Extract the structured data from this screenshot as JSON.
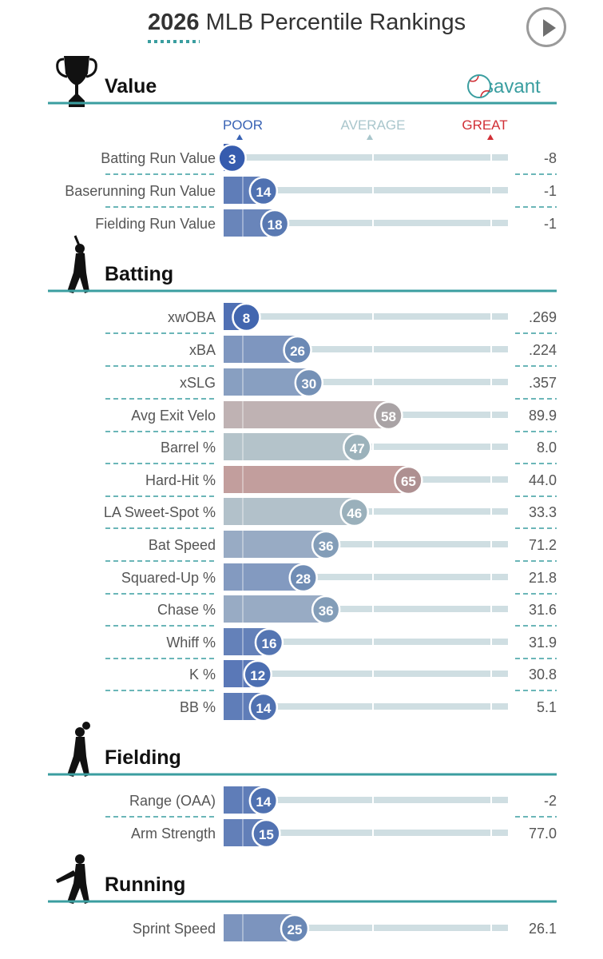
{
  "title_year": "2026",
  "title_rest": " MLB Percentile Rankings",
  "brand": "savant",
  "scale_labels": {
    "poor": "POOR",
    "average": "AVERAGE",
    "great": "GREAT"
  },
  "colors": {
    "teal": "#3a9ea0",
    "poor": "#3862b4",
    "great": "#d12f36",
    "average": "#a9c6cc",
    "track": "#cfdee2"
  },
  "icons": [
    "trophy-icon",
    "batter-icon",
    "fielder-icon",
    "runner-icon",
    "baseball-logo-icon",
    "play-icon"
  ],
  "chart_data": {
    "type": "bar",
    "xlim": [
      0,
      100
    ],
    "sections": [
      {
        "name": "Value",
        "metrics": [
          {
            "label": "Batting Run Value",
            "percentile": 3,
            "value": "-8"
          },
          {
            "label": "Baserunning Run Value",
            "percentile": 14,
            "value": "-1"
          },
          {
            "label": "Fielding Run Value",
            "percentile": 18,
            "value": "-1"
          }
        ]
      },
      {
        "name": "Batting",
        "metrics": [
          {
            "label": "xwOBA",
            "percentile": 8,
            "value": ".269"
          },
          {
            "label": "xBA",
            "percentile": 26,
            "value": ".224"
          },
          {
            "label": "xSLG",
            "percentile": 30,
            "value": ".357"
          },
          {
            "label": "Avg Exit Velo",
            "percentile": 58,
            "value": "89.9"
          },
          {
            "label": "Barrel %",
            "percentile": 47,
            "value": "8.0"
          },
          {
            "label": "Hard-Hit %",
            "percentile": 65,
            "value": "44.0"
          },
          {
            "label": "LA Sweet-Spot %",
            "percentile": 46,
            "value": "33.3"
          },
          {
            "label": "Bat Speed",
            "percentile": 36,
            "value": "71.2"
          },
          {
            "label": "Squared-Up %",
            "percentile": 28,
            "value": "21.8"
          },
          {
            "label": "Chase %",
            "percentile": 36,
            "value": "31.6"
          },
          {
            "label": "Whiff %",
            "percentile": 16,
            "value": "31.9"
          },
          {
            "label": "K %",
            "percentile": 12,
            "value": "30.8"
          },
          {
            "label": "BB %",
            "percentile": 14,
            "value": "5.1"
          }
        ]
      },
      {
        "name": "Fielding",
        "metrics": [
          {
            "label": "Range (OAA)",
            "percentile": 14,
            "value": "-2"
          },
          {
            "label": "Arm Strength",
            "percentile": 15,
            "value": "77.0"
          }
        ]
      },
      {
        "name": "Running",
        "metrics": [
          {
            "label": "Sprint Speed",
            "percentile": 25,
            "value": "26.1"
          }
        ]
      }
    ]
  }
}
